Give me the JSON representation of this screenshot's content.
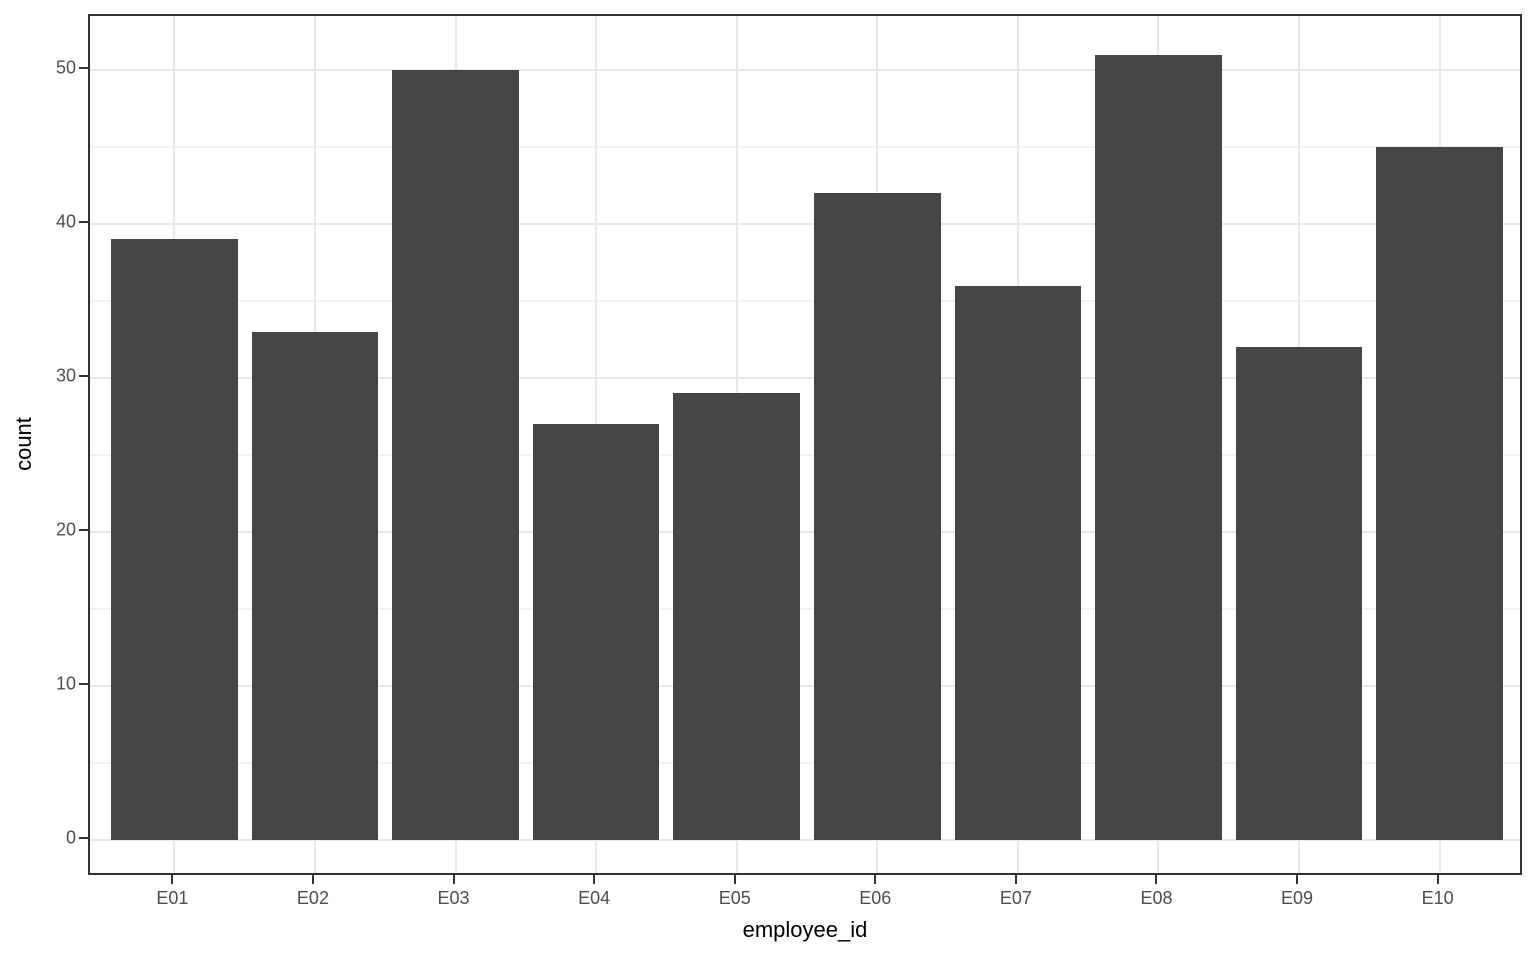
{
  "chart_data": {
    "type": "bar",
    "title": "",
    "xlabel": "employee_id",
    "ylabel": "count",
    "categories": [
      "E01",
      "E02",
      "E03",
      "E04",
      "E05",
      "E06",
      "E07",
      "E08",
      "E09",
      "E10"
    ],
    "values": [
      39,
      33,
      50,
      27,
      29,
      42,
      36,
      51,
      32,
      45
    ],
    "ylim": [
      0,
      51
    ],
    "y_major_ticks": [
      0,
      10,
      20,
      30,
      40,
      50
    ],
    "y_minor_gridlines": [
      5,
      15,
      25,
      35,
      45
    ],
    "grid": "on",
    "legend": "none",
    "style": {
      "bar_color": "#464646",
      "panel_border_color": "#333333",
      "major_grid_color": "#E8E8E8",
      "minor_grid_color": "#F2F2F2",
      "tick_color": "#333333",
      "tick_label_color": "#4D4D4D",
      "axis_title_color": "#000000",
      "background": "#FFFFFF"
    }
  }
}
